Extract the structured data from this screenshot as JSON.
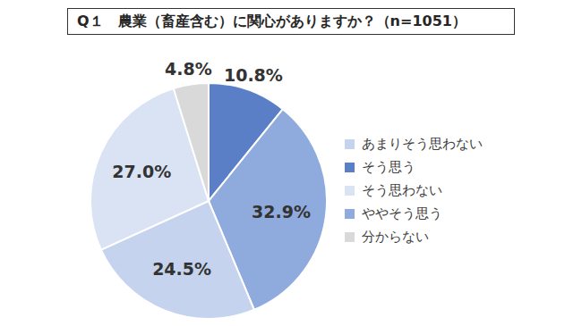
{
  "chart_data": {
    "type": "pie",
    "title": "Q１　農業（畜産含む）に関心がありますか？（n=1051）",
    "categories": [
      "そう思う",
      "ややそう思う",
      "あまりそう思わない",
      "そう思わない",
      "分からない"
    ],
    "values": [
      10.8,
      32.9,
      24.5,
      27.0,
      4.8
    ],
    "value_labels": [
      "10.8%",
      "32.9%",
      "24.5%",
      "27.0%",
      "4.8%"
    ],
    "colors": [
      "#5b7fc7",
      "#8faadc",
      "#c5d3ee",
      "#dae3f3",
      "#d9d9d9"
    ],
    "legend": "right",
    "data_labels": true
  }
}
